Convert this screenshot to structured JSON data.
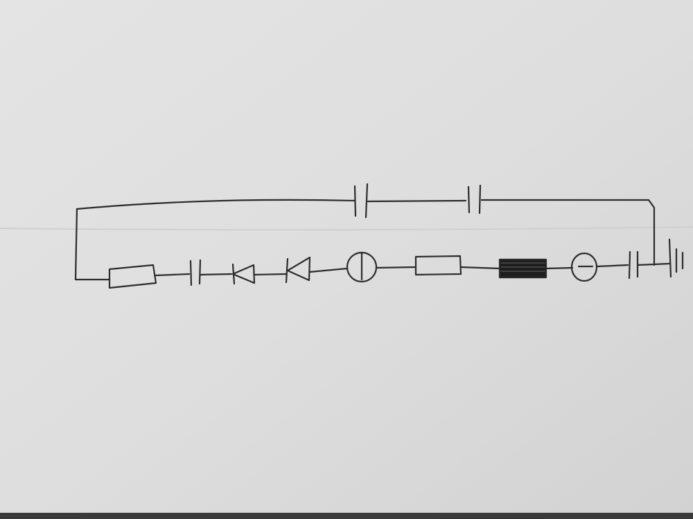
{
  "image_type": "hand-drawn circuit schematic on paper",
  "background": {
    "paper_color": "#e6e6e6",
    "ink_color": "#2b2b2b",
    "edge_color": "#3a3a3a"
  },
  "components": [
    {
      "id": "resistor-1",
      "kind": "resistor",
      "section": "lower"
    },
    {
      "id": "capacitor-1",
      "kind": "capacitor",
      "section": "lower"
    },
    {
      "id": "diode-1",
      "kind": "diode",
      "section": "lower"
    },
    {
      "id": "diode-2",
      "kind": "diode",
      "section": "lower"
    },
    {
      "id": "meter-1",
      "kind": "circle-with-vertical-bar",
      "section": "lower"
    },
    {
      "id": "resistor-2",
      "kind": "resistor",
      "section": "lower"
    },
    {
      "id": "inductor-1",
      "kind": "filled-rectangle",
      "section": "lower"
    },
    {
      "id": "meter-2",
      "kind": "circle-with-horizontal-bar",
      "section": "lower"
    },
    {
      "id": "capacitor-2",
      "kind": "capacitor",
      "section": "lower"
    },
    {
      "id": "battery-1",
      "kind": "battery",
      "section": "right-end"
    },
    {
      "id": "capacitor-3",
      "kind": "capacitor",
      "section": "upper"
    },
    {
      "id": "capacitor-4",
      "kind": "capacitor",
      "section": "upper"
    }
  ]
}
